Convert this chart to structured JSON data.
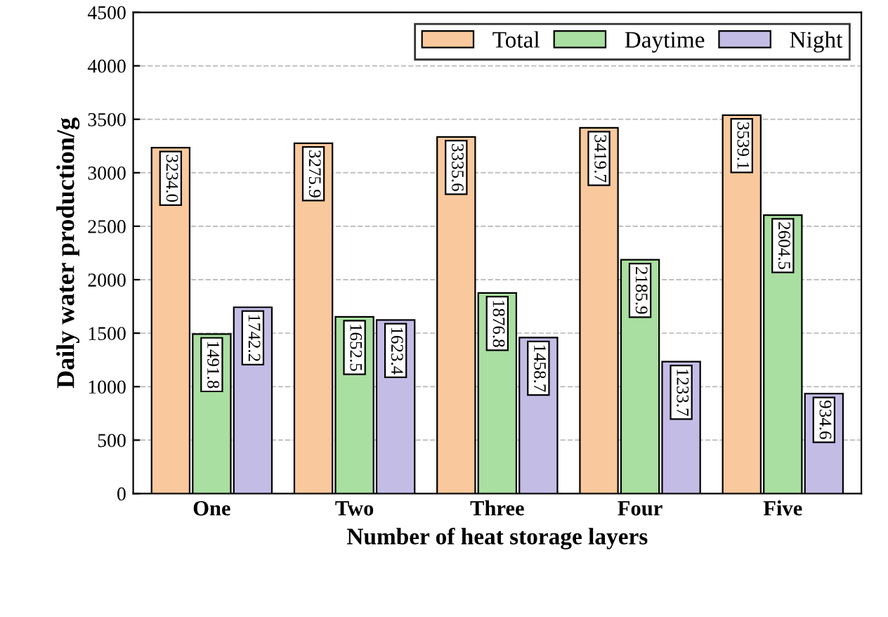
{
  "chart_data": {
    "type": "bar",
    "xlabel": "Number of heat storage layers",
    "ylabel": "Daily water production/g",
    "categories": [
      "One",
      "Two",
      "Three",
      "Four",
      "Five"
    ],
    "series": [
      {
        "name": "Total",
        "color": "#f9c89c",
        "values": [
          3234,
          3275.9,
          3335.6,
          3419.7,
          3539.1
        ],
        "value_labels": [
          "3234.0",
          "3275.9",
          "3335.6",
          "3419.7",
          "3539.1"
        ]
      },
      {
        "name": "Daytime",
        "color": "#a9dfa0",
        "values": [
          1491.8,
          1652.5,
          1876.8,
          2185.9,
          2604.5
        ],
        "value_labels": [
          "1491.8",
          "1652.5",
          "1876.8",
          "2185.9",
          "2604.5"
        ]
      },
      {
        "name": "Night",
        "color": "#c3bde6",
        "values": [
          1742.2,
          1623.4,
          1458.7,
          1233.7,
          934.6
        ],
        "value_labels": [
          "1742.2",
          "1623.4",
          "1458.7",
          "1233.7",
          "934.6"
        ]
      }
    ],
    "ylim": [
      0,
      4500
    ],
    "yticks": [
      0,
      500,
      1000,
      1500,
      2000,
      2500,
      3000,
      3500,
      4000,
      4500
    ],
    "grid": "y",
    "legend": "top right"
  }
}
